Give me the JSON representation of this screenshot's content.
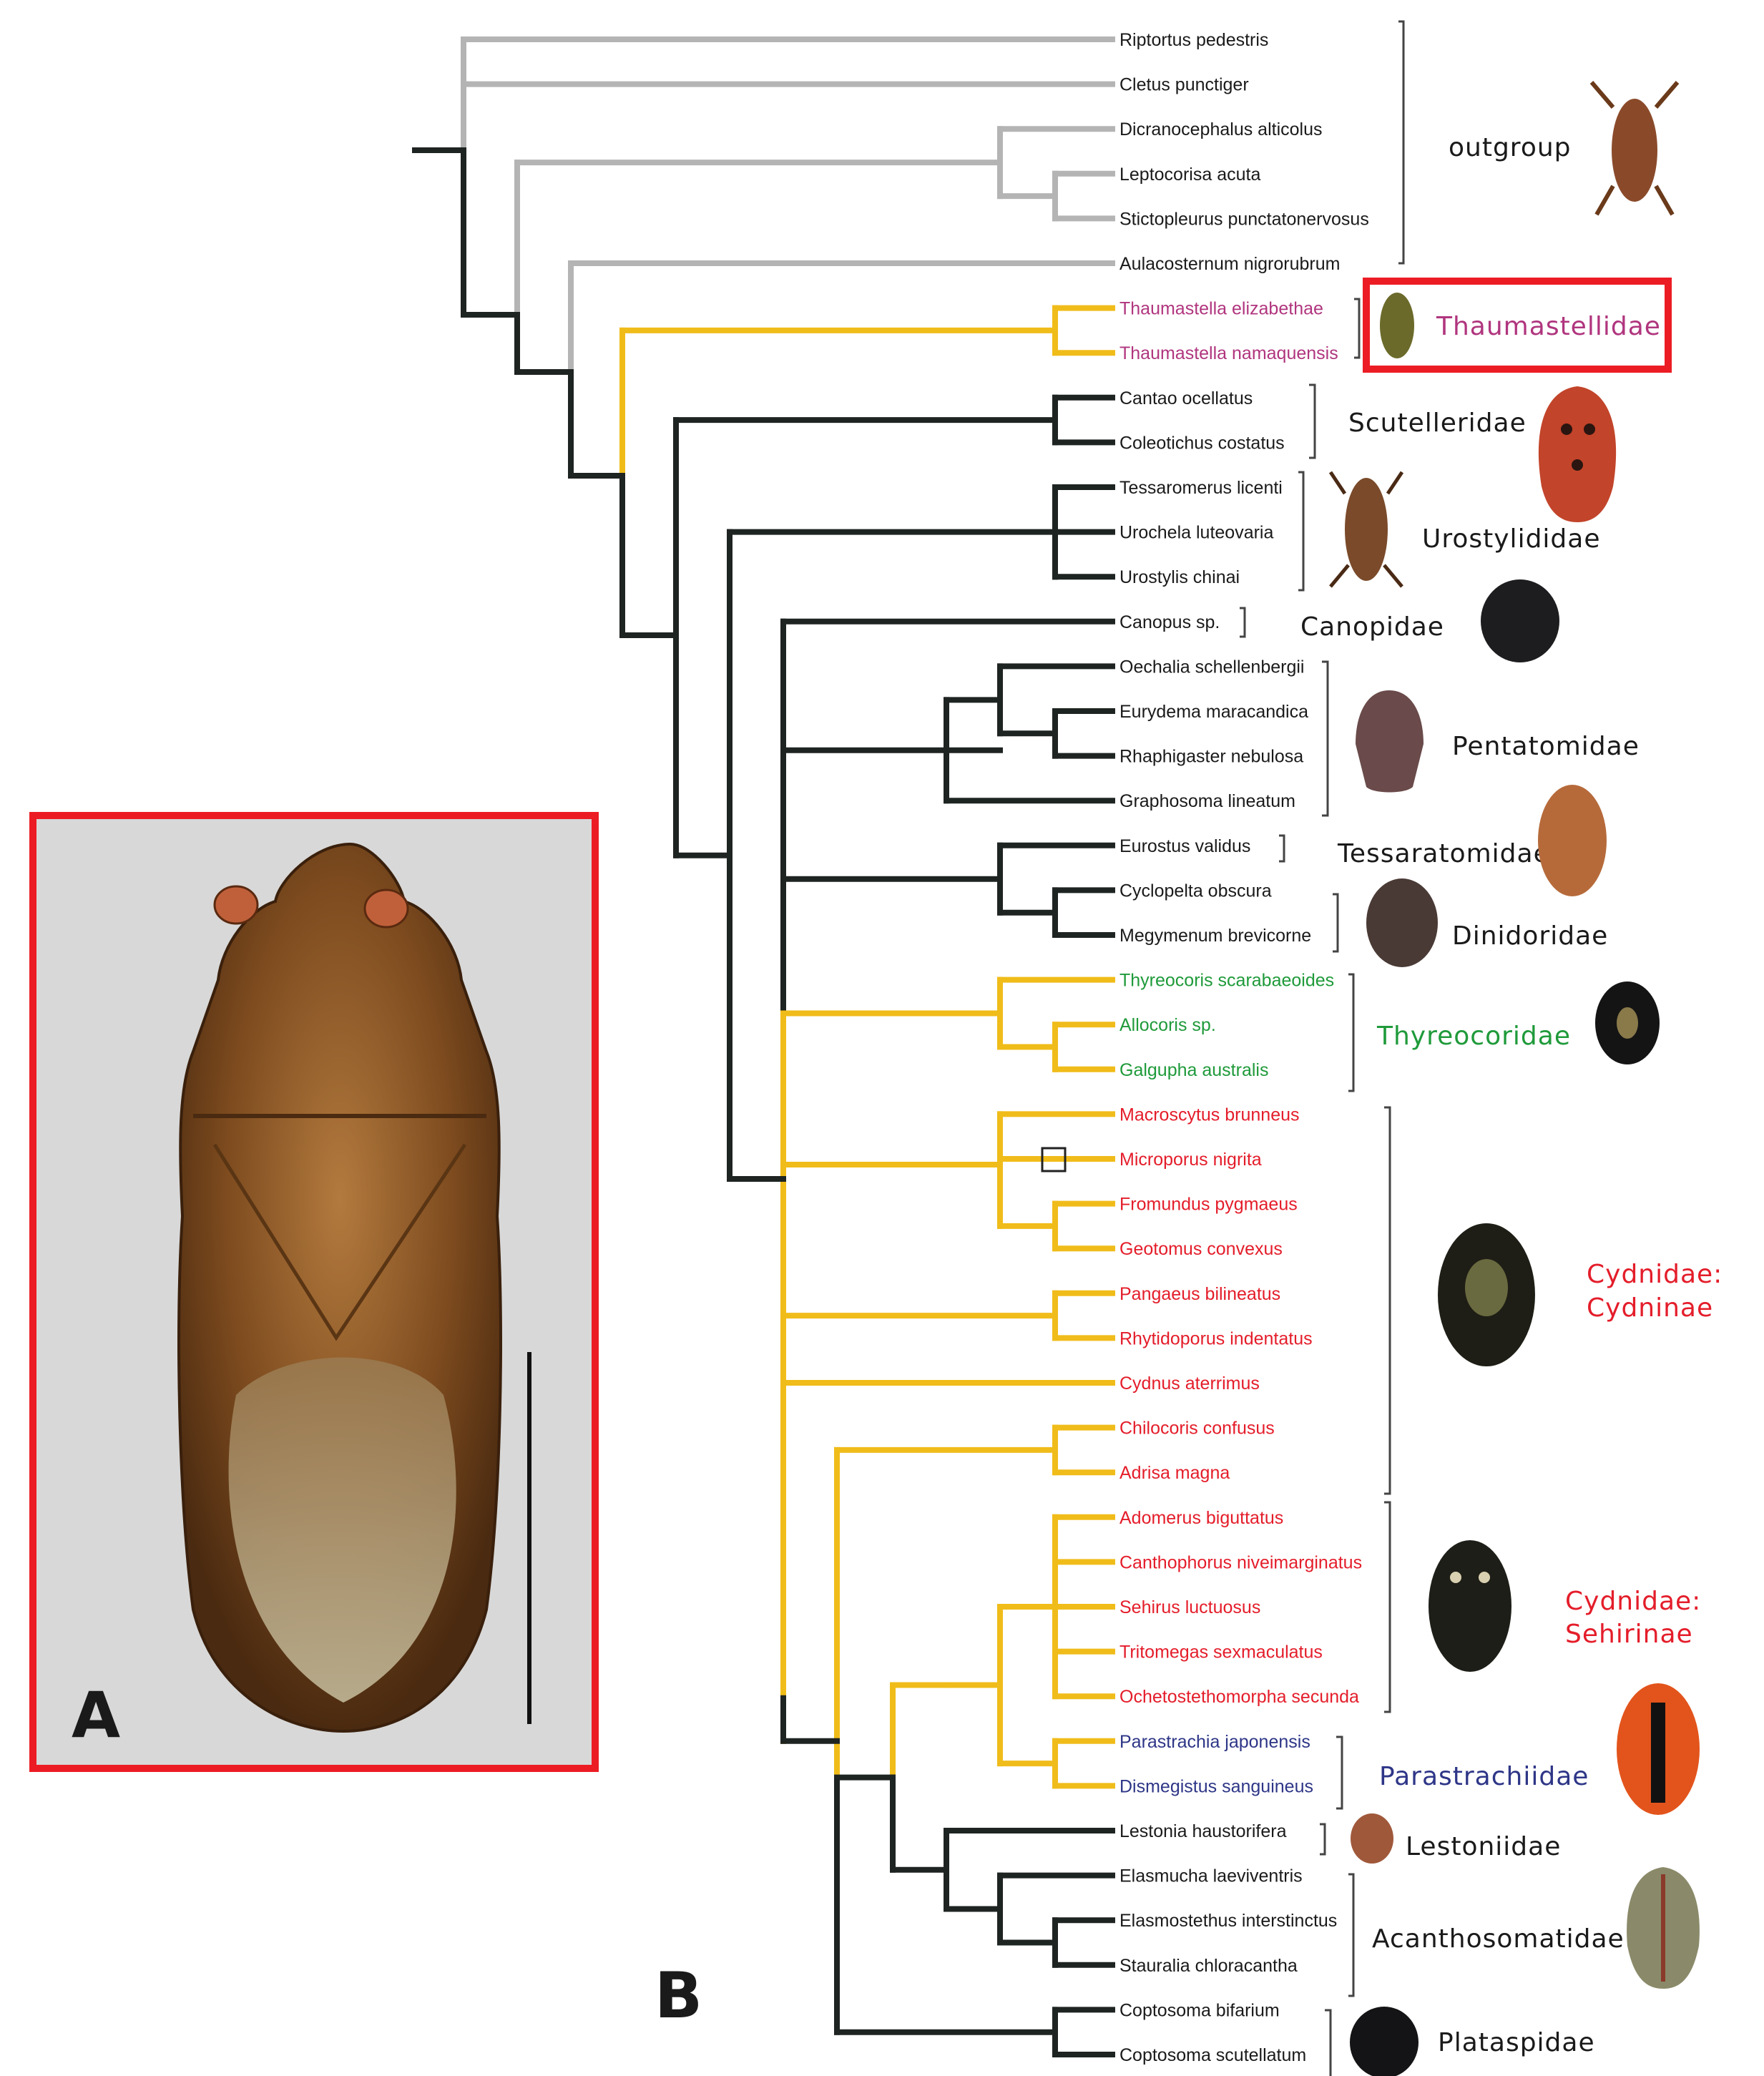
{
  "panels": {
    "a_label": "A",
    "b_label": "B"
  },
  "colors": {
    "outgroup_branch": "#b4b4b4",
    "ingroup_branch": "#1e2421",
    "highlight_branch": "#f0bc1a",
    "highlight_box": "#ec1c24",
    "thaumastellidae_text": "#b0357e",
    "thyreocoridae_text": "#1f9a3a",
    "cydnidae_text": "#e41d2a",
    "parastrachiidae_text": "#2e3687",
    "default_text": "#1a1a1a"
  },
  "taxa": [
    "Riptortus pedestris",
    "Cletus punctiger",
    "Dicranocephalus alticolus",
    "Leptocorisa acuta",
    "Stictopleurus punctatonervosus",
    "Aulacosternum nigrorubrum",
    "Thaumastella elizabethae",
    "Thaumastella namaquensis",
    "Cantao ocellatus",
    "Coleotichus costatus",
    "Tessaromerus licenti",
    "Urochela luteovaria",
    "Urostylis chinai",
    "Canopus sp.",
    "Oechalia schellenbergii",
    "Eurydema maracandica",
    "Rhaphigaster nebulosa",
    "Graphosoma lineatum",
    "Eurostus validus",
    "Cyclopelta obscura",
    "Megymenum brevicorne",
    "Thyreocoris scarabaeoides",
    "Allocoris sp.",
    "Galgupha australis",
    "Macroscytus brunneus",
    "Microporus nigrita",
    "Fromundus pygmaeus",
    "Geotomus convexus",
    "Pangaeus bilineatus",
    "Rhytidoporus indentatus",
    "Cydnus aterrimus",
    "Chilocoris confusus",
    "Adrisa magna",
    "Adomerus biguttatus",
    "Canthophorus niveimarginatus",
    "Sehirus luctuosus",
    "Tritomegas sexmaculatus",
    "Ochetostethomorpha secunda",
    "Parastrachia japonensis",
    "Dismegistus sanguineus",
    "Lestonia haustorifera",
    "Elasmucha laeviventris",
    "Elasmostethus interstinctus",
    "Stauralia chloracantha",
    "Coptosoma bifarium",
    "Coptosoma scutellatum"
  ],
  "groups": {
    "outgroup": "outgroup",
    "thaumastellidae": "Thaumastellidae",
    "scutelleridae": "Scutelleridae",
    "urostylididae": "Urostylididae",
    "canopidae": "Canopidae",
    "pentatomidae": "Pentatomidae",
    "tessaratomidae": "Tessaratomidae",
    "dinidoridae": "Dinidoridae",
    "thyreocoridae": "Thyreocoridae",
    "cydninae_1": "Cydnidae:",
    "cydninae_2": "Cydninae",
    "sehirinae_1": "Cydnidae:",
    "sehirinae_2": "Sehirinae",
    "parastrachiidae": "Parastrachiidae",
    "lestoniidae": "Lestoniidae",
    "acanthosomatidae": "Acanthosomatidae",
    "plataspidae": "Plataspidae"
  }
}
